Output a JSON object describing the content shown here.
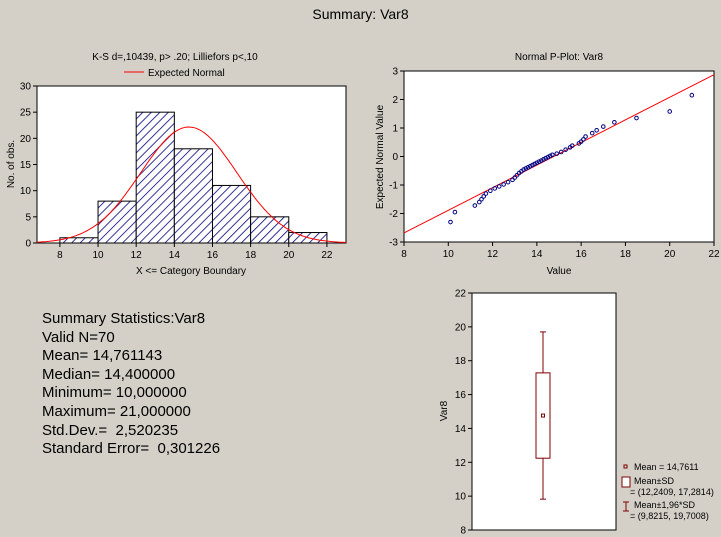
{
  "title": "Summary: Var8",
  "chart_data": [
    {
      "type": "bar",
      "title": "K-S d=,10439, p> .20; Lilliefors p<,10",
      "legend": "Expected Normal",
      "xlabel": "X <= Category Boundary",
      "ylabel": "No. of obs.",
      "bins": [
        [
          8,
          10
        ],
        [
          10,
          12
        ],
        [
          12,
          14
        ],
        [
          14,
          16
        ],
        [
          16,
          18
        ],
        [
          18,
          20
        ],
        [
          20,
          22
        ]
      ],
      "values": [
        1,
        8,
        25,
        18,
        11,
        5,
        2
      ],
      "xlim": [
        6.8,
        23
      ],
      "ylim": [
        0,
        30
      ],
      "xticks": [
        "8",
        "10",
        "12",
        "14",
        "16",
        "18",
        "20",
        "22"
      ],
      "yticks": [
        "0",
        "5",
        "10",
        "15",
        "20",
        "25",
        "30"
      ],
      "normal_curve": {
        "mean": 14.761143,
        "sd": 2.520235,
        "n": 70,
        "binwidth": 2,
        "color": "#ff0000"
      },
      "bar_hatch": "#000080"
    },
    {
      "type": "scatter",
      "title": "Normal P-Plot: Var8",
      "xlabel": "Value",
      "ylabel": "Expected Normal Value",
      "xlim": [
        8,
        22
      ],
      "ylim": [
        -3,
        3
      ],
      "xticks": [
        "8",
        "10",
        "12",
        "14",
        "16",
        "18",
        "20",
        "22"
      ],
      "yticks": [
        "-3",
        "-2",
        "-1",
        "0",
        "1",
        "2",
        "3"
      ],
      "points": [
        [
          10.1,
          -2.3
        ],
        [
          10.3,
          -1.95
        ],
        [
          11.2,
          -1.72
        ],
        [
          11.4,
          -1.6
        ],
        [
          11.5,
          -1.5
        ],
        [
          11.6,
          -1.4
        ],
        [
          11.7,
          -1.3
        ],
        [
          11.9,
          -1.2
        ],
        [
          12.1,
          -1.12
        ],
        [
          12.3,
          -1.05
        ],
        [
          12.5,
          -0.98
        ],
        [
          12.7,
          -0.9
        ],
        [
          12.9,
          -0.82
        ],
        [
          13.0,
          -0.74
        ],
        [
          13.1,
          -0.66
        ],
        [
          13.2,
          -0.58
        ],
        [
          13.3,
          -0.52
        ],
        [
          13.4,
          -0.46
        ],
        [
          13.5,
          -0.42
        ],
        [
          13.6,
          -0.38
        ],
        [
          13.7,
          -0.34
        ],
        [
          13.8,
          -0.3
        ],
        [
          13.9,
          -0.26
        ],
        [
          14.0,
          -0.22
        ],
        [
          14.1,
          -0.18
        ],
        [
          14.2,
          -0.14
        ],
        [
          14.3,
          -0.1
        ],
        [
          14.4,
          -0.06
        ],
        [
          14.5,
          -0.02
        ],
        [
          14.6,
          0.02
        ],
        [
          14.7,
          0.06
        ],
        [
          14.9,
          0.1
        ],
        [
          15.1,
          0.16
        ],
        [
          15.3,
          0.24
        ],
        [
          15.5,
          0.32
        ],
        [
          15.6,
          0.38
        ],
        [
          15.9,
          0.46
        ],
        [
          16.0,
          0.52
        ],
        [
          16.1,
          0.6
        ],
        [
          16.2,
          0.7
        ],
        [
          16.5,
          0.82
        ],
        [
          16.7,
          0.92
        ],
        [
          17.0,
          1.05
        ],
        [
          17.5,
          1.2
        ],
        [
          18.5,
          1.35
        ],
        [
          20.0,
          1.58
        ],
        [
          21.0,
          2.15
        ]
      ],
      "fit_line": {
        "mean": 14.761143,
        "sd": 2.520235,
        "color": "#ff0000"
      },
      "point_color": "#000080"
    },
    {
      "type": "box",
      "ylabel": "Var8",
      "ylim": [
        8,
        22
      ],
      "yticks": [
        "8",
        "10",
        "12",
        "14",
        "16",
        "18",
        "20",
        "22"
      ],
      "mean": 14.7611,
      "sd_box": [
        12.2409,
        17.2814
      ],
      "whisker": [
        9.8215,
        19.7008
      ],
      "color": "#800000",
      "legend": [
        {
          "label": "Mean = 14,7611"
        },
        {
          "label": "Mean±SD",
          "sub": "= (12,2409, 17,2814)"
        },
        {
          "label": "Mean±1,96*SD",
          "sub": "= (9,8215, 19,7008)"
        }
      ]
    }
  ],
  "stats": {
    "header": "Summary Statistics:Var8",
    "lines": [
      "Valid N=70",
      "Mean= 14,761143",
      "Median= 14,400000",
      "Minimum= 10,000000",
      "Maximum= 21,000000",
      "Std.Dev.=  2,520235",
      "Standard Error=  0,301226"
    ]
  }
}
